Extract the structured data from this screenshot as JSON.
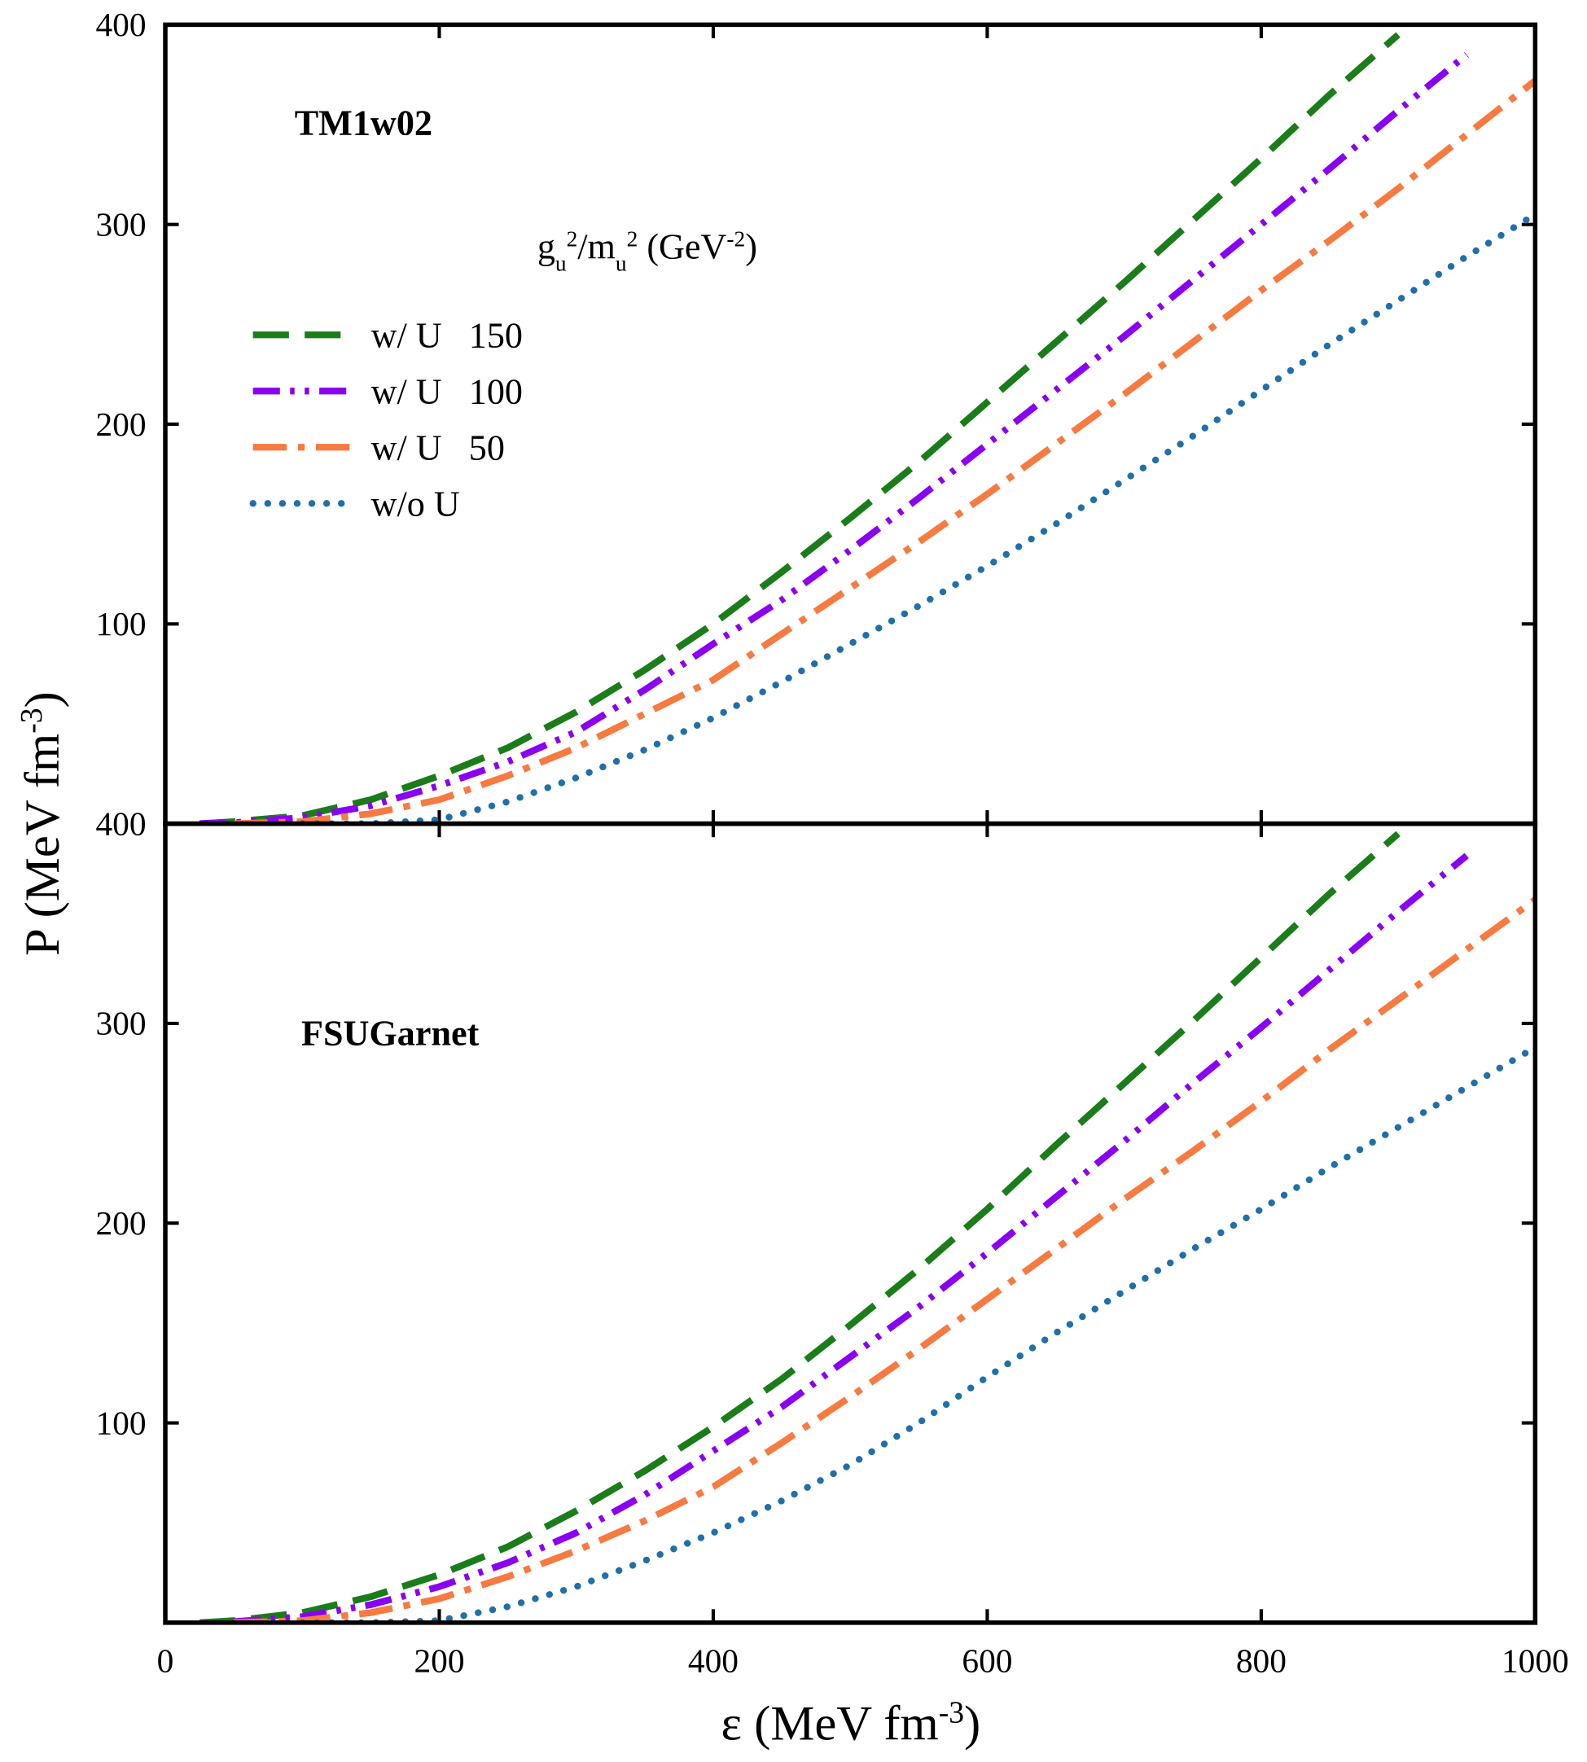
{
  "chart_data": [
    {
      "type": "line",
      "title": "TM1w02",
      "ylabel": [
        "P (MeV fm",
        "-3",
        ")"
      ],
      "legend_title": [
        "g",
        "u",
        "2",
        "/m",
        "u",
        "2",
        " (GeV",
        "-2",
        ")"
      ],
      "legend": "upper left",
      "x": [
        25,
        50,
        100,
        150,
        200,
        250,
        300,
        350,
        400,
        450,
        500,
        550,
        600,
        650,
        700,
        750,
        800,
        850,
        900,
        950,
        1000
      ],
      "xlim": [
        0,
        1000
      ],
      "ylim": [
        0,
        400
      ],
      "yticks": [
        100,
        200,
        300,
        400
      ],
      "series": [
        {
          "name": "w/ U   150",
          "color": "#1a7d1a",
          "line_style": "dash",
          "values": [
            0,
            1,
            4,
            12,
            24,
            38,
            56,
            77,
            100,
            126,
            153,
            181,
            211,
            241,
            271,
            302,
            333,
            365,
            395,
            null,
            null
          ]
        },
        {
          "name": "w/ U   100",
          "color": "#8a00f0",
          "line_style": "dashdotdot",
          "values": [
            0,
            0.5,
            3,
            9,
            19,
            31,
            46,
            67,
            90,
            112,
            137,
            163,
            190,
            217,
            244,
            272,
            300,
            328,
            357,
            385,
            null
          ]
        },
        {
          "name": "w/ U   50",
          "color": "#f77a40",
          "line_style": "dashdot",
          "values": [
            null,
            0,
            1,
            5,
            12,
            24,
            38,
            55,
            72,
            95,
            118,
            141,
            165,
            190,
            215,
            241,
            267,
            292,
            318,
            345,
            372
          ]
        },
        {
          "name": "w/o U",
          "color": "#1f6faa",
          "line_style": "dot",
          "values": [
            null,
            null,
            0,
            0,
            2,
            11,
            23,
            37,
            53,
            71,
            90,
            109,
            129,
            150,
            172,
            194,
            217,
            240,
            262,
            284,
            305
          ]
        }
      ]
    },
    {
      "type": "line",
      "title": "FSUGarnet",
      "xlabel": [
        "ε (MeV fm",
        "-3",
        ")"
      ],
      "x": [
        25,
        50,
        100,
        150,
        200,
        250,
        300,
        350,
        400,
        450,
        500,
        550,
        600,
        650,
        700,
        750,
        800,
        850,
        900,
        950,
        1000
      ],
      "xlim": [
        0,
        1000
      ],
      "ylim": [
        0,
        400
      ],
      "yticks": [
        100,
        200,
        300,
        400
      ],
      "xticks": [
        0,
        200,
        400,
        600,
        800,
        1000
      ],
      "series": [
        {
          "color": "#1a7d1a",
          "line_style": "dash",
          "values": [
            0,
            1,
            5,
            13,
            24,
            38,
            56,
            76,
            98,
            122,
            149,
            177,
            207,
            239,
            270,
            301,
            333,
            365,
            395,
            null,
            null
          ]
        },
        {
          "color": "#8a00f0",
          "line_style": "dashdotdot",
          "values": [
            null,
            0.5,
            3,
            9,
            18,
            30,
            45,
            64,
            86,
            108,
            133,
            158,
            185,
            213,
            241,
            270,
            298,
            327,
            356,
            384,
            null
          ]
        },
        {
          "color": "#f77a40",
          "line_style": "dashdot",
          "values": [
            null,
            0,
            1,
            5,
            12,
            23,
            36,
            51,
            68,
            90,
            113,
            137,
            162,
            187,
            212,
            236,
            261,
            287,
            312,
            337,
            362
          ]
        },
        {
          "color": "#1f6faa",
          "line_style": "dot",
          "values": [
            null,
            null,
            0,
            0,
            1,
            8,
            18,
            31,
            45,
            61,
            79,
            100,
            123,
            145,
            166,
            187,
            207,
            228,
            248,
            268,
            288
          ]
        }
      ]
    }
  ]
}
